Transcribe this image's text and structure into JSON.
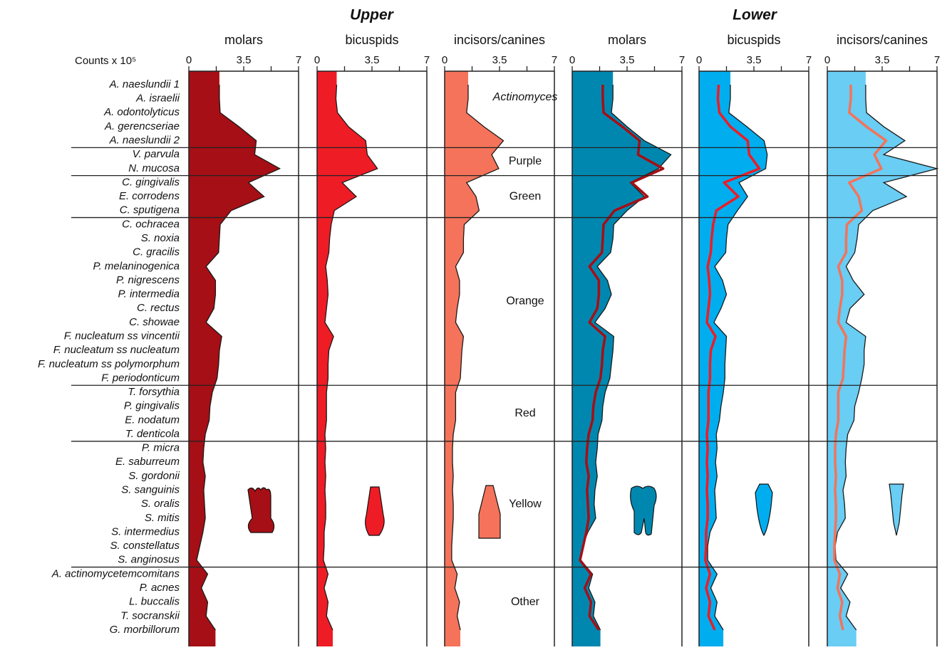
{
  "chart_data": {
    "type": "area",
    "orientation": "horizontal",
    "x_label": "Counts x 10⁵",
    "xlim": [
      0,
      7
    ],
    "xticks": [
      0,
      3.5,
      7
    ],
    "minor_xticks": [
      1.75,
      5.25
    ],
    "complexes": [
      {
        "name": "Actinomyces",
        "species": [
          "A. naeslundii 1",
          "A. israelii",
          "A. odontolyticus",
          "A. gerencseriae",
          "A. naeslundii 2"
        ]
      },
      {
        "name": "Purple",
        "species": [
          "V. parvula",
          "N. mucosa"
        ]
      },
      {
        "name": "Green",
        "species": [
          "C. gingivalis",
          "E. corrodens",
          "C. sputigena"
        ]
      },
      {
        "name": "Orange",
        "species": [
          "C. ochracea",
          "S. noxia",
          "C. gracilis",
          "P. melaninogenica",
          "P. nigrescens",
          "P. intermedia",
          "C. rectus",
          "C. showae",
          "F. nucleatum ss vincentii",
          "F. nucleatum ss nucleatum",
          "F. nucleatum ss polymorphum",
          "F. periodonticum"
        ]
      },
      {
        "name": "Red",
        "species": [
          "T. forsythia",
          "P. gingivalis",
          "E. nodatum",
          "T. denticola"
        ]
      },
      {
        "name": "Yellow",
        "species": [
          "P. micra",
          "E. saburreum",
          "S. gordonii",
          "S. sanguinis",
          "S. oralis",
          "S. mitis",
          "S. intermedius",
          "S. constellatus",
          "S. anginosus"
        ]
      },
      {
        "name": "Other",
        "species": [
          "A. actinomycetemcomitans",
          "P. acnes",
          "L. buccalis",
          "T. socranskii",
          "G. morbillorum"
        ]
      }
    ],
    "groups": [
      {
        "title": "Upper",
        "panels": [
          {
            "name": "molars",
            "color": "#a50f15",
            "values": [
              1.95,
              1.95,
              2.0,
              3.2,
              4.3,
              4.2,
              5.8,
              3.8,
              4.8,
              2.7,
              2.0,
              1.95,
              1.9,
              1.1,
              1.7,
              1.7,
              1.6,
              1.1,
              2.1,
              1.95,
              1.9,
              1.8,
              1.5,
              1.35,
              1.3,
              1.05,
              0.95,
              0.9,
              1.05,
              0.95,
              1.0,
              1.05,
              0.9,
              0.7,
              0.5,
              1.2,
              0.8,
              1.2,
              1.1,
              1.7
            ]
          },
          {
            "name": "bicuspids",
            "color": "#ee1c25",
            "values": [
              1.25,
              1.2,
              1.3,
              2.0,
              3.1,
              3.2,
              3.85,
              1.6,
              2.5,
              1.1,
              0.9,
              0.8,
              0.75,
              0.55,
              0.65,
              0.7,
              0.6,
              0.5,
              1.05,
              0.75,
              0.7,
              0.7,
              0.6,
              0.6,
              0.6,
              0.5,
              0.55,
              0.5,
              0.55,
              0.5,
              0.55,
              0.55,
              0.45,
              0.45,
              0.4,
              0.7,
              0.45,
              0.7,
              0.6,
              1.0
            ]
          },
          {
            "name": "incisors/canines",
            "color": "#f4735a",
            "values": [
              1.5,
              1.5,
              1.4,
              2.5,
              3.75,
              3.0,
              3.45,
              1.4,
              2.0,
              2.2,
              1.25,
              1.2,
              1.2,
              0.7,
              0.95,
              0.95,
              0.8,
              0.7,
              1.2,
              1.1,
              1.05,
              1.0,
              0.7,
              0.7,
              0.7,
              0.55,
              0.5,
              0.5,
              0.55,
              0.5,
              0.55,
              0.55,
              0.5,
              0.45,
              0.45,
              0.8,
              0.65,
              0.95,
              0.8,
              1.0
            ]
          }
        ]
      },
      {
        "title": "Lower",
        "panels": [
          {
            "name": "molars",
            "color": "#0087b0",
            "values": [
              2.6,
              2.6,
              2.5,
              3.5,
              4.6,
              6.3,
              5.5,
              3.7,
              4.6,
              3.5,
              2.65,
              2.6,
              2.45,
              1.6,
              2.25,
              2.5,
              2.1,
              1.45,
              2.65,
              2.6,
              2.5,
              2.4,
              2.1,
              1.95,
              1.9,
              1.65,
              1.6,
              1.5,
              1.6,
              1.45,
              1.4,
              1.5,
              1.0,
              0.65,
              0.55,
              1.3,
              1.05,
              1.45,
              1.35,
              1.8
            ]
          },
          {
            "name": "bicuspids",
            "color": "#00adef",
            "values": [
              2.0,
              2.0,
              1.9,
              3.05,
              4.15,
              4.35,
              4.25,
              2.55,
              3.1,
              2.45,
              1.85,
              1.75,
              1.7,
              1.0,
              1.5,
              1.75,
              1.4,
              0.95,
              1.75,
              1.7,
              1.65,
              1.65,
              1.55,
              1.4,
              1.3,
              1.1,
              1.15,
              1.05,
              1.15,
              1.0,
              1.05,
              1.1,
              0.7,
              0.55,
              0.55,
              1.15,
              0.75,
              1.15,
              1.0,
              1.55
            ]
          },
          {
            "name": "incisors/canines",
            "color": "#69cdf4",
            "values": [
              2.45,
              2.45,
              2.5,
              3.6,
              4.95,
              3.6,
              7.0,
              3.6,
              5.05,
              2.9,
              2.0,
              1.9,
              1.75,
              1.2,
              1.65,
              2.35,
              1.45,
              1.2,
              2.45,
              2.35,
              2.35,
              2.2,
              2.0,
              1.75,
              1.7,
              1.3,
              1.2,
              1.15,
              1.2,
              1.0,
              1.1,
              1.15,
              0.65,
              0.5,
              0.55,
              1.3,
              0.85,
              1.45,
              1.2,
              1.85
            ]
          }
        ]
      }
    ]
  }
}
